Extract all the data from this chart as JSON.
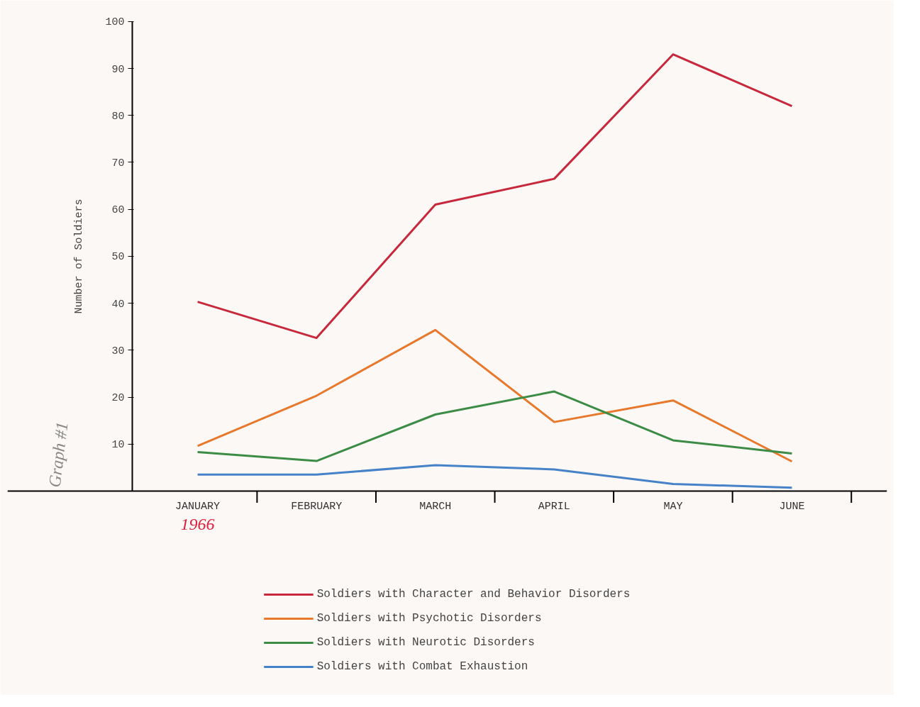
{
  "chart_data": {
    "type": "line",
    "ylabel": "Number of Soldiers",
    "categories": [
      "JANUARY",
      "FEBRUARY",
      "MARCH",
      "APRIL",
      "MAY",
      "JUNE"
    ],
    "series": [
      {
        "name": "Soldiers with Character and Behavior Disorders",
        "color": "#c8283c",
        "values": [
          40.3,
          32.6,
          61,
          66.5,
          93,
          82
        ]
      },
      {
        "name": "Soldiers with Psychotic Disorders",
        "color": "#e8782c",
        "values": [
          9.6,
          20.3,
          34.3,
          14.7,
          19.3,
          6.3
        ]
      },
      {
        "name": "Soldiers with Neurotic Disorders",
        "color": "#3c8c46",
        "values": [
          8.3,
          6.4,
          16.3,
          21.2,
          10.8,
          8
        ]
      },
      {
        "name": "Soldiers with Combat Exhaustion",
        "color": "#4682c8",
        "values": [
          3.5,
          3.5,
          5.5,
          4.6,
          1.5,
          0.7
        ]
      }
    ],
    "ylim": [
      0,
      100
    ],
    "yticks": [
      10,
      20,
      30,
      40,
      50,
      60,
      70,
      80,
      90,
      100
    ],
    "grid": false,
    "legend": "bottom",
    "marker": "none",
    "line_style": "solid",
    "annotations": [
      "1966",
      "Graph #1"
    ]
  }
}
